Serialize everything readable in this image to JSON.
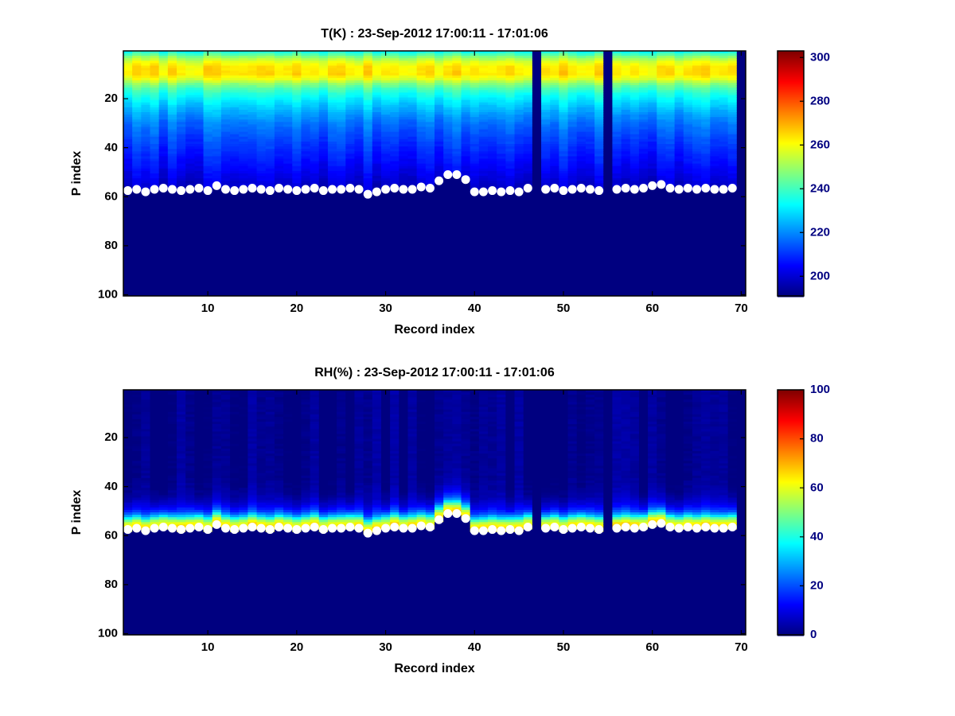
{
  "figure": {
    "background": "#ffffff",
    "marker_color": "#ffffff",
    "axis_color": "#000000"
  },
  "chart_data": [
    {
      "type": "heatmap",
      "title": "T(K) : 23-Sep-2012 17:00:11 - 17:01:06",
      "xlabel": "Record index",
      "ylabel": "P index",
      "x_ticks": [
        10,
        20,
        30,
        40,
        50,
        60,
        70
      ],
      "y_ticks": [
        20,
        40,
        60,
        80,
        100
      ],
      "x_limits": [
        0.5,
        70.5
      ],
      "y_limits": [
        0.5,
        100.5
      ],
      "y_axis_reversed": true,
      "n_records": 70,
      "n_levels": 100,
      "colormap": "jet",
      "colorbar": {
        "vmin": 191,
        "vmax": 303,
        "ticks": [
          200,
          220,
          240,
          260,
          280,
          300
        ],
        "position": "right"
      },
      "missing_records": [
        47,
        55,
        70
      ],
      "nominal_surface": 57,
      "surface_relative": false,
      "noise": {
        "column": 8,
        "cell": 2
      },
      "profile_points": [
        [
          1,
          236
        ],
        [
          3,
          248
        ],
        [
          5,
          258
        ],
        [
          7,
          263
        ],
        [
          10,
          264
        ],
        [
          12,
          258
        ],
        [
          14,
          248
        ],
        [
          16,
          241
        ],
        [
          18,
          236
        ],
        [
          22,
          229
        ],
        [
          26,
          223
        ],
        [
          30,
          218
        ],
        [
          36,
          213
        ],
        [
          42,
          209
        ],
        [
          48,
          205
        ],
        [
          52,
          202
        ],
        [
          56,
          199
        ],
        [
          60,
          197
        ]
      ],
      "surface_p": [
        57.5,
        57,
        58,
        57,
        56.5,
        57,
        57.5,
        57,
        56.5,
        57.5,
        55.5,
        57,
        57.5,
        57,
        56.5,
        57,
        57.5,
        56.5,
        57,
        57.5,
        57,
        56.5,
        57.5,
        57,
        57,
        56.5,
        57,
        59,
        58,
        57,
        56.5,
        57,
        57,
        56,
        56.5,
        53.5,
        51,
        51,
        53,
        58,
        58,
        57.5,
        58,
        57.5,
        58,
        56.5,
        null,
        57,
        56.5,
        57.5,
        57,
        56.5,
        57,
        57.5,
        null,
        57,
        56.5,
        57,
        56.5,
        55.5,
        55,
        56.5,
        57,
        56.5,
        57,
        56.5,
        57,
        57,
        56.5,
        null
      ],
      "surface_marker": {
        "shape": "circle",
        "color": "#ffffff",
        "radius": 5.5
      }
    },
    {
      "type": "heatmap",
      "title": "RH(%) : 23-Sep-2012 17:00:11 - 17:01:06",
      "xlabel": "Record index",
      "ylabel": "P index",
      "x_ticks": [
        10,
        20,
        30,
        40,
        50,
        60,
        70
      ],
      "y_ticks": [
        20,
        40,
        60,
        80,
        100
      ],
      "x_limits": [
        0.5,
        70.5
      ],
      "y_limits": [
        0.5,
        100.5
      ],
      "y_axis_reversed": true,
      "n_records": 70,
      "n_levels": 100,
      "colormap": "jet",
      "colorbar": {
        "vmin": 0,
        "vmax": 100,
        "ticks": [
          0,
          20,
          40,
          60,
          80,
          100
        ],
        "position": "right"
      },
      "missing_records": [
        47,
        55,
        70
      ],
      "nominal_surface": 57,
      "surface_relative": true,
      "noise": {
        "column": 6,
        "cell": 2
      },
      "profile_points": [
        [
          1,
          1
        ],
        [
          36,
          1
        ],
        [
          40,
          2
        ],
        [
          44,
          4
        ],
        [
          46,
          7
        ],
        [
          48,
          11
        ],
        [
          50,
          18
        ],
        [
          51,
          25
        ],
        [
          52,
          33
        ],
        [
          53,
          45
        ],
        [
          54,
          55
        ],
        [
          55,
          62
        ],
        [
          56,
          65
        ],
        [
          57,
          63
        ],
        [
          58,
          60
        ],
        [
          62,
          55
        ],
        [
          100,
          50
        ]
      ],
      "surface_p": [
        57.5,
        57,
        58,
        57,
        56.5,
        57,
        57.5,
        57,
        56.5,
        57.5,
        55.5,
        57,
        57.5,
        57,
        56.5,
        57,
        57.5,
        56.5,
        57,
        57.5,
        57,
        56.5,
        57.5,
        57,
        57,
        56.5,
        57,
        59,
        58,
        57,
        56.5,
        57,
        57,
        56,
        56.5,
        53.5,
        51,
        51,
        53,
        58,
        58,
        57.5,
        58,
        57.5,
        58,
        56.5,
        null,
        57,
        56.5,
        57.5,
        57,
        56.5,
        57,
        57.5,
        null,
        57,
        56.5,
        57,
        56.5,
        55.5,
        55,
        56.5,
        57,
        56.5,
        57,
        56.5,
        57,
        57,
        56.5,
        null
      ],
      "surface_marker": {
        "shape": "circle",
        "color": "#ffffff",
        "radius": 5.5
      }
    }
  ]
}
